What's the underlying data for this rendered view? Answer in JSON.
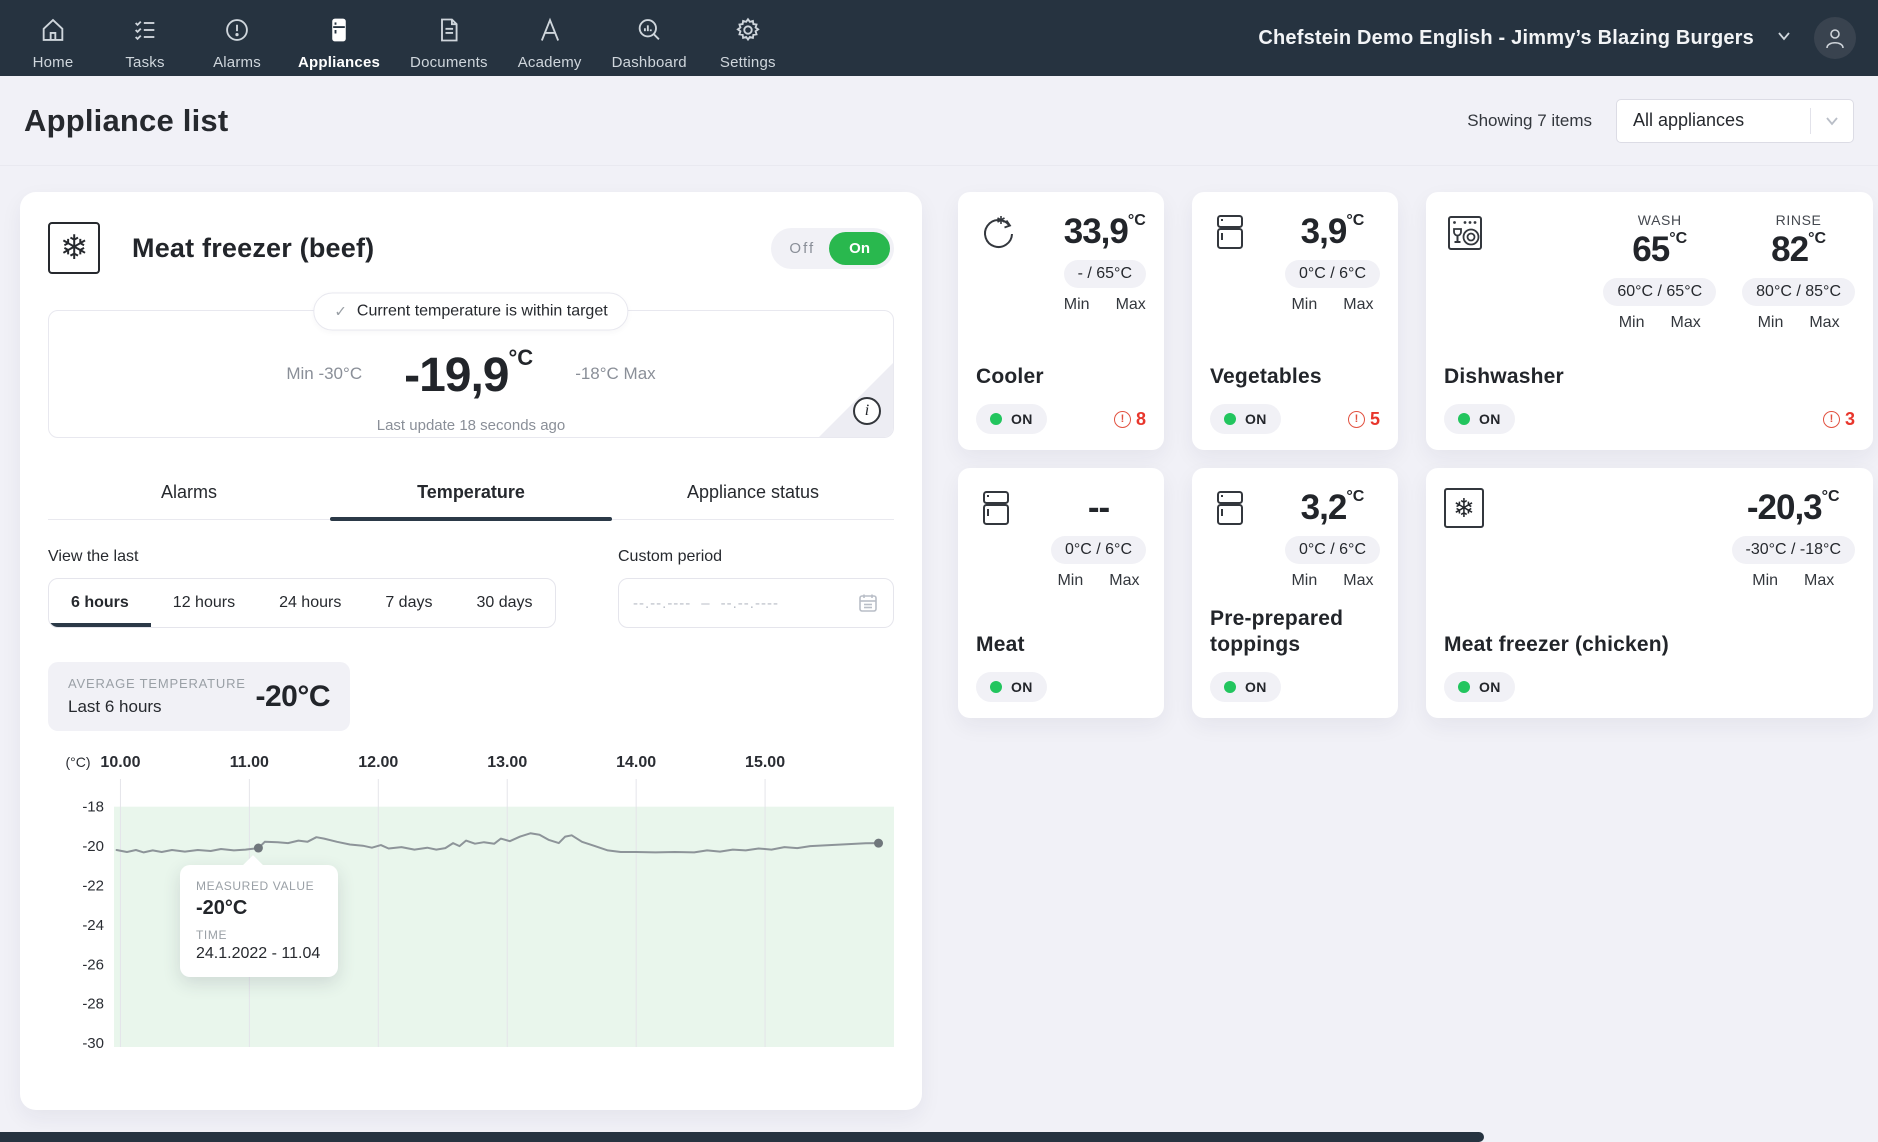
{
  "nav": {
    "items": [
      {
        "label": "Home",
        "icon": "home-icon",
        "active": false
      },
      {
        "label": "Tasks",
        "icon": "tasks-icon",
        "active": false
      },
      {
        "label": "Alarms",
        "icon": "alarms-icon",
        "active": false
      },
      {
        "label": "Appliances",
        "icon": "appliances-icon",
        "active": true
      },
      {
        "label": "Documents",
        "icon": "documents-icon",
        "active": false
      },
      {
        "label": "Academy",
        "icon": "academy-icon",
        "active": false
      },
      {
        "label": "Dashboard",
        "icon": "dashboard-icon",
        "active": false
      },
      {
        "label": "Settings",
        "icon": "settings-icon",
        "active": false
      }
    ],
    "account": "Chefstein Demo English - Jimmy’s Blazing Burgers"
  },
  "header": {
    "title": "Appliance list",
    "showing": "Showing 7 items",
    "filter_selected": "All appliances"
  },
  "labels": {
    "min": "Min",
    "max": "Max",
    "on": "ON"
  },
  "detail": {
    "title": "Meat freezer (beef)",
    "icon": "freezer-icon",
    "toggle": {
      "off": "Off",
      "on": "On"
    },
    "status_banner": "Current temperature is within target",
    "min_label": "Min -30°C",
    "current_value": "-19,9",
    "current_unit": "°C",
    "max_label": "-18°C Max",
    "last_update": "Last update 18 seconds ago",
    "tabs": [
      {
        "label": "Alarms",
        "active": false
      },
      {
        "label": "Temperature",
        "active": true
      },
      {
        "label": "Appliance status",
        "active": false
      }
    ],
    "view_last_label": "View the last",
    "ranges": [
      {
        "label": "6 hours",
        "active": true
      },
      {
        "label": "12 hours",
        "active": false
      },
      {
        "label": "24 hours",
        "active": false
      },
      {
        "label": "7 days",
        "active": false
      },
      {
        "label": "30 days",
        "active": false
      }
    ],
    "custom_period_label": "Custom period",
    "custom_period_start": "--.--.----",
    "custom_period_sep": "–",
    "custom_period_end": "--.--.----",
    "average": {
      "label": "AVERAGE TEMPERATURE",
      "sub": "Last 6 hours",
      "value": "-20°C"
    },
    "tooltip": {
      "label": "MEASURED VALUE",
      "value": "-20°C",
      "time_label": "TIME",
      "time": "24.1.2022 - 11.04"
    }
  },
  "chart_data": {
    "type": "line",
    "y_unit": "(°C)",
    "x_ticks": [
      "10.00",
      "11.00",
      "12.00",
      "13.00",
      "14.00",
      "15.00"
    ],
    "x_tick_values": [
      10,
      11,
      12,
      13,
      14,
      15
    ],
    "y_ticks": [
      -18,
      -20,
      -22,
      -24,
      -26,
      -28,
      -30
    ],
    "xlim": [
      9.95,
      16.0
    ],
    "ylim": [
      -30.2,
      -17.0
    ],
    "target_band": {
      "max": -18,
      "min": -30.2,
      "color": "#e9f6ec"
    },
    "grid": "vertical-only",
    "series": [
      {
        "name": "Measured temperature",
        "points": [
          [
            9.97,
            -20.2
          ],
          [
            10.05,
            -20.3
          ],
          [
            10.12,
            -20.2
          ],
          [
            10.18,
            -20.32
          ],
          [
            10.25,
            -20.22
          ],
          [
            10.32,
            -20.3
          ],
          [
            10.4,
            -20.2
          ],
          [
            10.5,
            -20.28
          ],
          [
            10.6,
            -20.2
          ],
          [
            10.7,
            -20.25
          ],
          [
            10.78,
            -20.15
          ],
          [
            10.88,
            -20.22
          ],
          [
            10.97,
            -20.18
          ],
          [
            11.07,
            -20.1
          ],
          [
            11.12,
            -19.78
          ],
          [
            11.22,
            -19.8
          ],
          [
            11.3,
            -19.85
          ],
          [
            11.38,
            -19.72
          ],
          [
            11.45,
            -19.78
          ],
          [
            11.52,
            -19.55
          ],
          [
            11.58,
            -19.62
          ],
          [
            11.68,
            -19.78
          ],
          [
            11.78,
            -19.92
          ],
          [
            11.88,
            -19.98
          ],
          [
            11.95,
            -20.08
          ],
          [
            12.02,
            -19.95
          ],
          [
            12.08,
            -20.12
          ],
          [
            12.18,
            -20.05
          ],
          [
            12.28,
            -20.18
          ],
          [
            12.38,
            -20.08
          ],
          [
            12.45,
            -20.18
          ],
          [
            12.52,
            -20.1
          ],
          [
            12.58,
            -19.85
          ],
          [
            12.63,
            -20.0
          ],
          [
            12.68,
            -19.72
          ],
          [
            12.75,
            -19.88
          ],
          [
            12.82,
            -19.8
          ],
          [
            12.9,
            -19.88
          ],
          [
            12.95,
            -19.62
          ],
          [
            13.02,
            -19.75
          ],
          [
            13.1,
            -19.52
          ],
          [
            13.18,
            -19.35
          ],
          [
            13.25,
            -19.42
          ],
          [
            13.32,
            -19.68
          ],
          [
            13.4,
            -19.85
          ],
          [
            13.45,
            -19.52
          ],
          [
            13.5,
            -19.45
          ],
          [
            13.58,
            -19.78
          ],
          [
            13.68,
            -20.0
          ],
          [
            13.78,
            -20.22
          ],
          [
            13.88,
            -20.3
          ],
          [
            14.0,
            -20.3
          ],
          [
            14.15,
            -20.32
          ],
          [
            14.3,
            -20.3
          ],
          [
            14.45,
            -20.32
          ],
          [
            14.55,
            -20.22
          ],
          [
            14.65,
            -20.28
          ],
          [
            14.75,
            -20.18
          ],
          [
            14.85,
            -20.22
          ],
          [
            14.95,
            -20.12
          ],
          [
            15.05,
            -20.18
          ],
          [
            15.15,
            -20.05
          ],
          [
            15.25,
            -20.1
          ],
          [
            15.35,
            -20.0
          ],
          [
            15.5,
            -19.95
          ],
          [
            15.65,
            -19.9
          ],
          [
            15.78,
            -19.86
          ],
          [
            15.88,
            -19.85
          ]
        ]
      }
    ],
    "markers": [
      [
        11.07,
        -20.1
      ],
      [
        15.88,
        -19.85
      ]
    ],
    "marked_point": {
      "value": "-20°C",
      "time": "24.1.2022 - 11.04"
    }
  },
  "appliances": [
    {
      "name": "Cooler",
      "icon": "blast-chiller-icon",
      "boxed_icon": false,
      "readings": [
        {
          "label": "",
          "value": "33,9",
          "unit": "°C",
          "range": "-   / 65°C"
        }
      ],
      "status": "ON",
      "alarms": 8,
      "wide": false
    },
    {
      "name": "Vegetables",
      "icon": "fridge-icon",
      "boxed_icon": false,
      "readings": [
        {
          "label": "",
          "value": "3,9",
          "unit": "°C",
          "range": "0°C / 6°C"
        }
      ],
      "status": "ON",
      "alarms": 5,
      "wide": false
    },
    {
      "name": "Dishwasher",
      "icon": "dishwasher-icon",
      "boxed_icon": false,
      "readings": [
        {
          "label": "WASH",
          "value": "65",
          "unit": "°C",
          "range": "60°C / 65°C"
        },
        {
          "label": "RINSE",
          "value": "82",
          "unit": "°C",
          "range": "80°C / 85°C"
        }
      ],
      "status": "ON",
      "alarms": 3,
      "wide": true
    },
    {
      "name": "Meat",
      "icon": "fridge-icon",
      "boxed_icon": false,
      "readings": [
        {
          "label": "",
          "value": "--",
          "unit": "",
          "range": "0°C / 6°C"
        }
      ],
      "status": "ON",
      "alarms": null,
      "wide": false
    },
    {
      "name": "Pre-prepared toppings",
      "icon": "fridge-icon",
      "boxed_icon": false,
      "readings": [
        {
          "label": "",
          "value": "3,2",
          "unit": "°C",
          "range": "0°C / 6°C"
        }
      ],
      "status": "ON",
      "alarms": null,
      "wide": false
    },
    {
      "name": "Meat freezer (chicken)",
      "icon": "freezer-icon",
      "boxed_icon": true,
      "readings": [
        {
          "label": "",
          "value": "-20,3",
          "unit": "°C",
          "range": "-30°C / -18°C"
        }
      ],
      "status": "ON",
      "alarms": null,
      "wide": false
    }
  ]
}
